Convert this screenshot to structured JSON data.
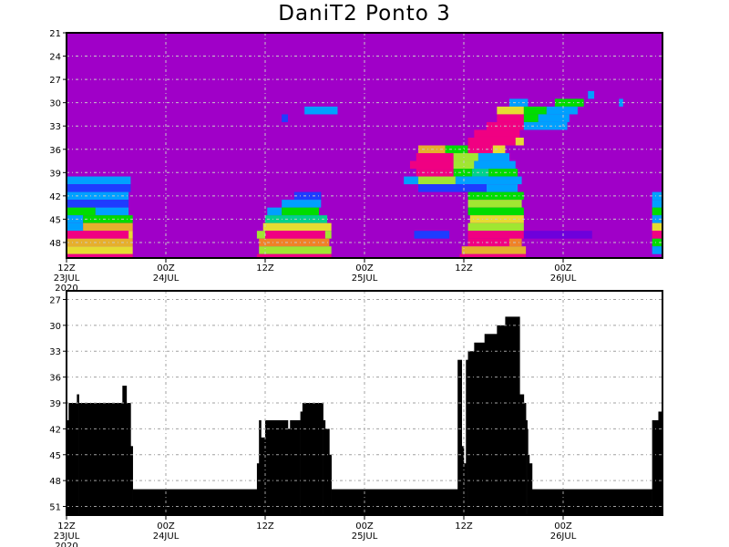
{
  "title": "DaniT2 Ponto 3",
  "x_ticks": [
    {
      "time": "2020-07-23T12:00",
      "hour": "12Z",
      "day": "23JUL",
      "year": "2020"
    },
    {
      "time": "2020-07-24T00:00",
      "hour": "00Z",
      "day": "24JUL",
      "year": ""
    },
    {
      "time": "2020-07-24T12:00",
      "hour": "12Z",
      "day": "",
      "year": ""
    },
    {
      "time": "2020-07-25T00:00",
      "hour": "00Z",
      "day": "25JUL",
      "year": ""
    },
    {
      "time": "2020-07-25T12:00",
      "hour": "12Z",
      "day": "",
      "year": ""
    },
    {
      "time": "2020-07-26T00:00",
      "hour": "00Z",
      "day": "26JUL",
      "year": ""
    }
  ],
  "chart_data": [
    {
      "type": "heatmap",
      "title": "",
      "xlim": [
        "2020-07-23T12:00",
        "2020-07-26T12:00"
      ],
      "ylim": [
        21,
        50
      ],
      "y_inverted": true,
      "yticks": [
        21,
        24,
        27,
        30,
        33,
        36,
        39,
        42,
        45,
        48
      ],
      "grid": true,
      "background_color": "#a000c8",
      "palette": [
        "#a000c8",
        "#6e00dc",
        "#1e3cff",
        "#00a0ff",
        "#00c8c8",
        "#00d28c",
        "#00dc00",
        "#a0e632",
        "#e6dc32",
        "#e6af2d",
        "#f08228",
        "#fa3c3c",
        "#f00082"
      ],
      "cells_format": [
        "level",
        "start",
        "end",
        "color_index"
      ],
      "cells": [
        [
          40,
          "2020-07-23T12:00",
          "2020-07-23T19:45",
          3
        ],
        [
          41,
          "2020-07-23T12:00",
          "2020-07-23T19:45",
          2
        ],
        [
          42,
          "2020-07-23T12:00",
          "2020-07-23T19:30",
          3
        ],
        [
          43,
          "2020-07-23T12:00",
          "2020-07-23T19:30",
          2
        ],
        [
          44,
          "2020-07-23T12:00",
          "2020-07-23T15:30",
          6
        ],
        [
          44,
          "2020-07-23T15:30",
          "2020-07-23T19:30",
          3
        ],
        [
          45,
          "2020-07-23T12:00",
          "2020-07-23T14:00",
          3
        ],
        [
          45,
          "2020-07-23T14:00",
          "2020-07-23T20:00",
          6
        ],
        [
          46,
          "2020-07-23T12:00",
          "2020-07-23T14:00",
          3
        ],
        [
          46,
          "2020-07-23T14:00",
          "2020-07-23T20:00",
          9
        ],
        [
          47,
          "2020-07-23T12:00",
          "2020-07-23T19:30",
          12
        ],
        [
          47,
          "2020-07-23T19:30",
          "2020-07-23T20:00",
          8
        ],
        [
          48,
          "2020-07-23T12:00",
          "2020-07-23T20:00",
          9
        ],
        [
          49,
          "2020-07-23T12:00",
          "2020-07-23T20:00",
          8
        ],
        [
          50,
          "2020-07-23T12:00",
          "2020-07-23T20:00",
          12
        ],
        [
          32,
          "2020-07-24T14:00",
          "2020-07-24T14:45",
          2
        ],
        [
          31,
          "2020-07-24T16:45",
          "2020-07-24T20:45",
          3
        ],
        [
          42,
          "2020-07-24T15:30",
          "2020-07-24T18:45",
          2
        ],
        [
          43,
          "2020-07-24T14:00",
          "2020-07-24T18:45",
          3
        ],
        [
          44,
          "2020-07-24T12:15",
          "2020-07-24T14:00",
          3
        ],
        [
          44,
          "2020-07-24T14:00",
          "2020-07-24T18:30",
          6
        ],
        [
          45,
          "2020-07-24T12:00",
          "2020-07-24T19:30",
          5
        ],
        [
          46,
          "2020-07-24T11:45",
          "2020-07-24T20:00",
          8
        ],
        [
          47,
          "2020-07-24T11:00",
          "2020-07-24T12:00",
          7
        ],
        [
          47,
          "2020-07-24T12:00",
          "2020-07-24T19:15",
          12
        ],
        [
          47,
          "2020-07-24T19:15",
          "2020-07-24T20:00",
          7
        ],
        [
          48,
          "2020-07-24T11:15",
          "2020-07-24T19:45",
          10
        ],
        [
          49,
          "2020-07-24T11:15",
          "2020-07-24T20:00",
          7
        ],
        [
          50,
          "2020-07-24T11:00",
          "2020-07-24T20:00",
          12
        ],
        [
          30,
          "2020-07-25T17:30",
          "2020-07-25T19:45",
          3
        ],
        [
          30,
          "2020-07-25T23:00",
          "2020-07-26T02:30",
          6
        ],
        [
          31,
          "2020-07-25T16:00",
          "2020-07-25T19:15",
          8
        ],
        [
          31,
          "2020-07-25T19:15",
          "2020-07-25T22:00",
          6
        ],
        [
          31,
          "2020-07-25T22:00",
          "2020-07-26T01:45",
          3
        ],
        [
          32,
          "2020-07-25T16:00",
          "2020-07-25T19:15",
          12
        ],
        [
          32,
          "2020-07-25T19:15",
          "2020-07-25T21:00",
          6
        ],
        [
          32,
          "2020-07-25T21:00",
          "2020-07-26T00:45",
          3
        ],
        [
          33,
          "2020-07-25T14:45",
          "2020-07-25T19:15",
          12
        ],
        [
          33,
          "2020-07-25T19:15",
          "2020-07-26T00:30",
          3
        ],
        [
          34,
          "2020-07-25T13:15",
          "2020-07-25T18:45",
          12
        ],
        [
          35,
          "2020-07-25T12:30",
          "2020-07-25T18:15",
          12
        ],
        [
          35,
          "2020-07-25T18:15",
          "2020-07-25T19:15",
          8
        ],
        [
          36,
          "2020-07-25T06:30",
          "2020-07-25T09:45",
          9
        ],
        [
          36,
          "2020-07-25T09:45",
          "2020-07-25T12:30",
          6
        ],
        [
          36,
          "2020-07-25T12:30",
          "2020-07-25T15:30",
          12
        ],
        [
          36,
          "2020-07-25T15:30",
          "2020-07-25T17:00",
          8
        ],
        [
          37,
          "2020-07-25T06:15",
          "2020-07-25T10:45",
          12
        ],
        [
          37,
          "2020-07-25T10:45",
          "2020-07-25T13:45",
          7
        ],
        [
          37,
          "2020-07-25T13:45",
          "2020-07-25T17:30",
          3
        ],
        [
          38,
          "2020-07-25T05:30",
          "2020-07-25T10:45",
          12
        ],
        [
          38,
          "2020-07-25T10:45",
          "2020-07-25T13:15",
          7
        ],
        [
          38,
          "2020-07-25T13:15",
          "2020-07-25T18:15",
          3
        ],
        [
          39,
          "2020-07-25T06:15",
          "2020-07-25T10:45",
          12
        ],
        [
          39,
          "2020-07-25T10:45",
          "2020-07-25T13:00",
          6
        ],
        [
          39,
          "2020-07-25T13:00",
          "2020-07-25T15:00",
          5
        ],
        [
          39,
          "2020-07-25T15:00",
          "2020-07-25T18:30",
          6
        ],
        [
          40,
          "2020-07-25T04:45",
          "2020-07-25T06:30",
          3
        ],
        [
          40,
          "2020-07-25T06:30",
          "2020-07-25T11:00",
          7
        ],
        [
          40,
          "2020-07-25T11:00",
          "2020-07-25T19:00",
          3
        ],
        [
          41,
          "2020-07-25T06:30",
          "2020-07-25T14:45",
          2
        ],
        [
          41,
          "2020-07-25T14:45",
          "2020-07-25T18:30",
          3
        ],
        [
          42,
          "2020-07-25T12:30",
          "2020-07-25T19:15",
          6
        ],
        [
          43,
          "2020-07-25T12:30",
          "2020-07-25T19:00",
          7
        ],
        [
          44,
          "2020-07-25T12:30",
          "2020-07-25T19:15",
          6
        ],
        [
          45,
          "2020-07-25T12:45",
          "2020-07-25T19:15",
          8
        ],
        [
          46,
          "2020-07-25T12:30",
          "2020-07-25T19:15",
          7
        ],
        [
          47,
          "2020-07-25T06:00",
          "2020-07-25T10:15",
          2
        ],
        [
          47,
          "2020-07-25T12:30",
          "2020-07-25T19:15",
          12
        ],
        [
          47,
          "2020-07-25T19:15",
          "2020-07-26T03:30",
          1
        ],
        [
          48,
          "2020-07-25T12:30",
          "2020-07-25T17:30",
          12
        ],
        [
          48,
          "2020-07-25T17:30",
          "2020-07-25T19:00",
          10
        ],
        [
          49,
          "2020-07-25T11:45",
          "2020-07-25T19:30",
          9
        ],
        [
          50,
          "2020-07-25T11:30",
          "2020-07-25T19:30",
          12
        ],
        [
          29,
          "2020-07-26T03:00",
          "2020-07-26T03:45",
          3
        ],
        [
          30,
          "2020-07-26T06:45",
          "2020-07-26T07:15",
          3
        ],
        [
          42,
          "2020-07-26T10:45",
          "2020-07-26T12:00",
          3
        ],
        [
          43,
          "2020-07-26T10:45",
          "2020-07-26T12:00",
          3
        ],
        [
          44,
          "2020-07-26T10:45",
          "2020-07-26T12:00",
          6
        ],
        [
          45,
          "2020-07-26T10:45",
          "2020-07-26T12:00",
          3
        ],
        [
          46,
          "2020-07-26T10:45",
          "2020-07-26T12:00",
          8
        ],
        [
          47,
          "2020-07-26T10:45",
          "2020-07-26T12:00",
          12
        ],
        [
          48,
          "2020-07-26T10:45",
          "2020-07-26T12:00",
          6
        ],
        [
          49,
          "2020-07-26T10:45",
          "2020-07-26T12:00",
          3
        ]
      ]
    },
    {
      "type": "area",
      "title": "",
      "xlim": [
        "2020-07-23T12:00",
        "2020-07-26T12:00"
      ],
      "ylim": [
        26,
        52
      ],
      "y_inverted": true,
      "yticks": [
        27,
        30,
        33,
        36,
        39,
        42,
        45,
        48,
        51
      ],
      "grid": true,
      "fill_color": "#000000",
      "step_format": [
        "start",
        "value"
      ],
      "steps": [
        [
          "2020-07-23T12:00",
          41
        ],
        [
          "2020-07-23T12:15",
          39
        ],
        [
          "2020-07-23T13:15",
          38
        ],
        [
          "2020-07-23T13:30",
          39
        ],
        [
          "2020-07-23T18:45",
          37
        ],
        [
          "2020-07-23T19:15",
          39
        ],
        [
          "2020-07-23T19:45",
          44
        ],
        [
          "2020-07-23T20:00",
          49
        ],
        [
          "2020-07-24T11:00",
          46
        ],
        [
          "2020-07-24T11:15",
          41
        ],
        [
          "2020-07-24T11:30",
          43
        ],
        [
          "2020-07-24T12:00",
          41
        ],
        [
          "2020-07-24T14:45",
          42
        ],
        [
          "2020-07-24T15:00",
          41
        ],
        [
          "2020-07-24T16:15",
          40
        ],
        [
          "2020-07-24T16:30",
          39
        ],
        [
          "2020-07-24T19:00",
          41
        ],
        [
          "2020-07-24T19:15",
          42
        ],
        [
          "2020-07-24T19:45",
          45
        ],
        [
          "2020-07-24T20:00",
          49
        ],
        [
          "2020-07-25T11:15",
          34
        ],
        [
          "2020-07-25T11:45",
          44
        ],
        [
          "2020-07-25T12:00",
          46
        ],
        [
          "2020-07-25T12:15",
          34
        ],
        [
          "2020-07-25T12:30",
          33
        ],
        [
          "2020-07-25T13:15",
          32
        ],
        [
          "2020-07-25T14:30",
          31
        ],
        [
          "2020-07-25T16:00",
          30
        ],
        [
          "2020-07-25T17:00",
          29
        ],
        [
          "2020-07-25T18:45",
          38
        ],
        [
          "2020-07-25T19:15",
          39
        ],
        [
          "2020-07-25T19:30",
          41
        ],
        [
          "2020-07-25T19:40",
          42
        ],
        [
          "2020-07-25T19:45",
          45
        ],
        [
          "2020-07-25T19:55",
          46
        ],
        [
          "2020-07-25T20:15",
          49
        ],
        [
          "2020-07-26T10:45",
          41
        ],
        [
          "2020-07-26T11:30",
          40
        ]
      ]
    }
  ]
}
